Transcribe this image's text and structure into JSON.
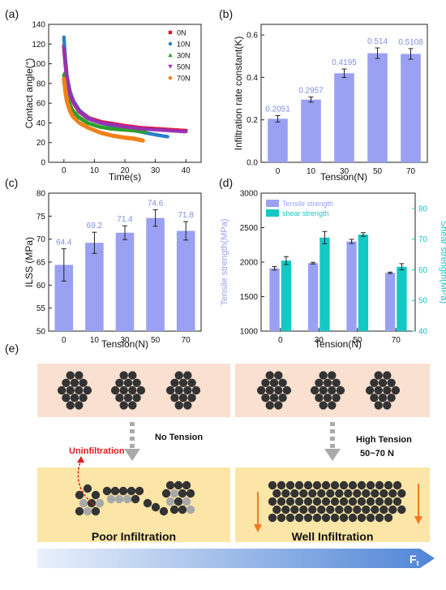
{
  "panels": {
    "a": "(a)",
    "b": "(b)",
    "c": "(c)",
    "d": "(d)",
    "e": "(e)"
  },
  "chart_data": [
    {
      "id": "a",
      "type": "scatter",
      "xlabel": "Time(s)",
      "ylabel": "Contact angle(°)",
      "xlim": [
        -5,
        45
      ],
      "ylim": [
        0,
        140
      ],
      "xticks": [
        0,
        10,
        20,
        30,
        40
      ],
      "yticks": [
        0,
        20,
        40,
        60,
        80,
        100,
        120,
        140
      ],
      "legend": "top-right",
      "series": [
        {
          "name": "0N",
          "color": "#e8112d",
          "marker": "square",
          "x": [
            0,
            0.5,
            1,
            2,
            3,
            5,
            8,
            12,
            16,
            20,
            25,
            30,
            35,
            40
          ],
          "y": [
            118,
            100,
            85,
            70,
            62,
            52,
            45,
            41,
            39,
            37,
            35,
            34,
            33,
            32
          ]
        },
        {
          "name": "10N",
          "color": "#2a7fc9",
          "marker": "circle",
          "x": [
            0,
            0.5,
            1,
            2,
            3,
            5,
            8,
            12,
            16,
            20,
            25,
            30,
            34
          ],
          "y": [
            127,
            105,
            88,
            72,
            63,
            53,
            45,
            40,
            37,
            34,
            31,
            28,
            26
          ]
        },
        {
          "name": "30N",
          "color": "#2ca02c",
          "marker": "triangle",
          "x": [
            0,
            0.5,
            1,
            2,
            3,
            5,
            8,
            12,
            16,
            20,
            24,
            27
          ],
          "y": [
            90,
            78,
            68,
            60,
            53,
            46,
            40,
            36,
            34,
            33,
            32,
            31
          ]
        },
        {
          "name": "50N",
          "color": "#9b30b0",
          "marker": "triangle-down",
          "x": [
            0,
            0.5,
            1,
            2,
            3,
            5,
            8,
            12,
            16,
            20,
            25,
            30,
            35,
            40
          ],
          "y": [
            115,
            98,
            84,
            68,
            60,
            51,
            44,
            40,
            38,
            36,
            34,
            33,
            32,
            31
          ]
        },
        {
          "name": "70N",
          "color": "#f28018",
          "marker": "diamond",
          "x": [
            0,
            0.5,
            1,
            2,
            3,
            5,
            8,
            12,
            16,
            20,
            23,
            26
          ],
          "y": [
            85,
            72,
            62,
            52,
            46,
            40,
            35,
            30,
            27,
            25,
            24,
            22
          ]
        }
      ]
    },
    {
      "id": "b",
      "type": "bar",
      "xlabel": "Tension(N)",
      "ylabel": "Infiltration rate constant(K)",
      "categories": [
        "0",
        "10",
        "30",
        "50",
        "70"
      ],
      "values": [
        0.2051,
        0.2957,
        0.4195,
        0.514,
        0.5108
      ],
      "errors": [
        0.015,
        0.012,
        0.02,
        0.025,
        0.025
      ],
      "labels": [
        "0.2051",
        "0.2957",
        "0.4195",
        "0.514",
        "0.5108"
      ],
      "ylim": [
        0,
        0.65
      ],
      "yticks": [
        "0.0",
        "0.2",
        "0.4",
        "0.6"
      ]
    },
    {
      "id": "c",
      "type": "bar",
      "xlabel": "Tension(N)",
      "ylabel": "ILSS (MPa)",
      "categories": [
        "0",
        "10",
        "30",
        "50",
        "70"
      ],
      "values": [
        64.4,
        69.2,
        71.4,
        74.6,
        71.8
      ],
      "errors": [
        3.5,
        2.3,
        1.5,
        1.8,
        2.0
      ],
      "labels": [
        "64.4",
        "69.2",
        "71.4",
        "74.6",
        "71.8"
      ],
      "ylim": [
        50,
        80
      ],
      "yticks": [
        "50",
        "55",
        "60",
        "65",
        "70",
        "75",
        "80"
      ]
    },
    {
      "id": "d",
      "type": "bar",
      "xlabel": "Tension(N)",
      "ylabel": "Tensile strength(MPa)",
      "ylabel2": "Shear strength(MPa)",
      "categories": [
        "0",
        "30",
        "50",
        "70"
      ],
      "legend": "top-left",
      "series": [
        {
          "name": "Tensile strength",
          "color": "#9aa0f2",
          "axis": "left",
          "values": [
            1910,
            1985,
            2300,
            1845
          ],
          "errors": [
            25,
            12,
            30,
            10
          ]
        },
        {
          "name": "shear strength",
          "color": "#12c9c4",
          "axis": "right",
          "values": [
            63,
            70.5,
            71.5,
            61
          ],
          "errors": [
            1.3,
            2.0,
            0.6,
            1.0
          ]
        }
      ],
      "ylim": [
        1000,
        3000
      ],
      "yticks": [
        "1000",
        "1500",
        "2000",
        "2500",
        "3000"
      ],
      "ylim2": [
        40,
        85
      ],
      "yticks2": [
        "40",
        "50",
        "60",
        "70",
        "80"
      ]
    }
  ],
  "diagram": {
    "no_tension": "No Tension",
    "high_tension": "High Tension",
    "high_tension_range": "50~70 N",
    "uninfiltration": "Uninfiltration",
    "poor": "Poor Infiltration",
    "well": "Well Infiltration",
    "force": "F",
    "force_sub": "t"
  }
}
